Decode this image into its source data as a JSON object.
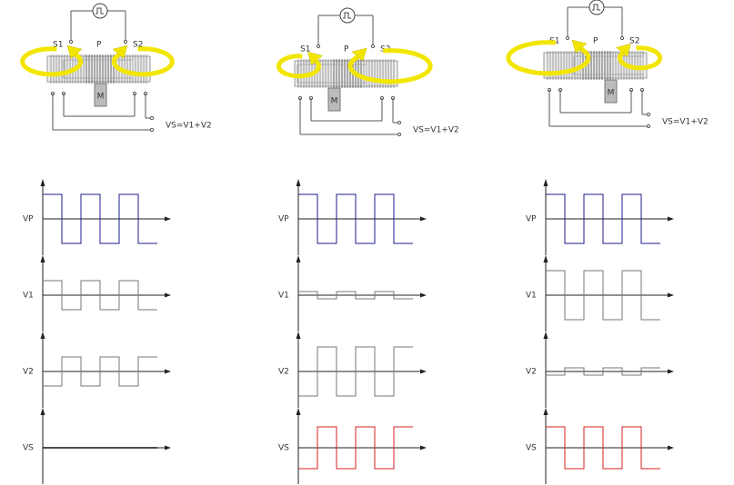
{
  "panels": [
    {
      "labels": {
        "s1": "S1",
        "p": "P",
        "s2": "S2",
        "core": "M",
        "output": "VS=V1+V2"
      },
      "signals": [
        "VP",
        "V1",
        "V2",
        "VS"
      ]
    },
    {
      "labels": {
        "s1": "S1",
        "p": "P",
        "s2": "S2",
        "core": "M",
        "output": "VS=V1+V2"
      },
      "signals": [
        "VP",
        "V1",
        "V2",
        "VS"
      ]
    },
    {
      "labels": {
        "s1": "S1",
        "p": "P",
        "s2": "S2",
        "core": "M",
        "output": "VS=V1+V2"
      },
      "signals": [
        "VP",
        "V1",
        "V2",
        "VS"
      ]
    }
  ]
}
